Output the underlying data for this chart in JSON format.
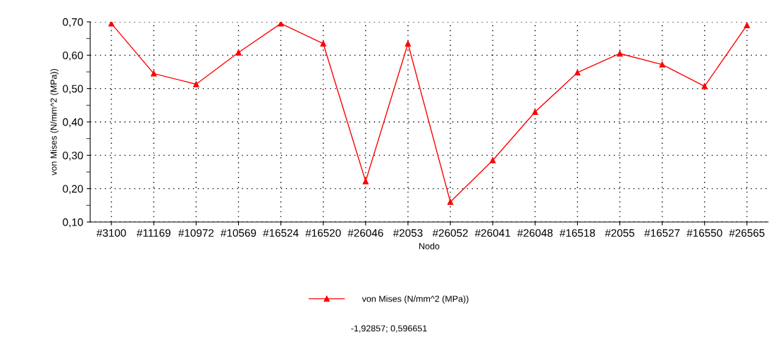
{
  "chart_data": {
    "type": "line",
    "xlabel": "Nodo",
    "ylabel": "von Mises (N/mm^2 (MPa))",
    "categories": [
      "#3100",
      "#11169",
      "#10972",
      "#10569",
      "#16524",
      "#16520",
      "#26046",
      "#2053",
      "#26052",
      "#26041",
      "#26048",
      "#16518",
      "#2055",
      "#16527",
      "#16550",
      "#26565"
    ],
    "series": [
      {
        "name": "von Mises (N/mm^2 (MPa))",
        "color": "#ff0000",
        "values": [
          0.695,
          0.545,
          0.513,
          0.608,
          0.695,
          0.635,
          0.222,
          0.635,
          0.16,
          0.285,
          0.43,
          0.548,
          0.605,
          0.572,
          0.507,
          0.69
        ]
      }
    ],
    "ylim": [
      0.1,
      0.7
    ],
    "yticks": [
      {
        "value": 0.1,
        "label": "0,10"
      },
      {
        "value": 0.2,
        "label": "0,20"
      },
      {
        "value": 0.3,
        "label": "0,30"
      },
      {
        "value": 0.4,
        "label": "0,40"
      },
      {
        "value": 0.5,
        "label": "0,50"
      },
      {
        "value": 0.6,
        "label": "0,60"
      },
      {
        "value": 0.7,
        "label": "0,70"
      }
    ],
    "grid": true,
    "legend": "bottom",
    "marker": "triangle",
    "line_style": "solid",
    "annotations": [
      "-1,92857; 0,596651"
    ]
  }
}
